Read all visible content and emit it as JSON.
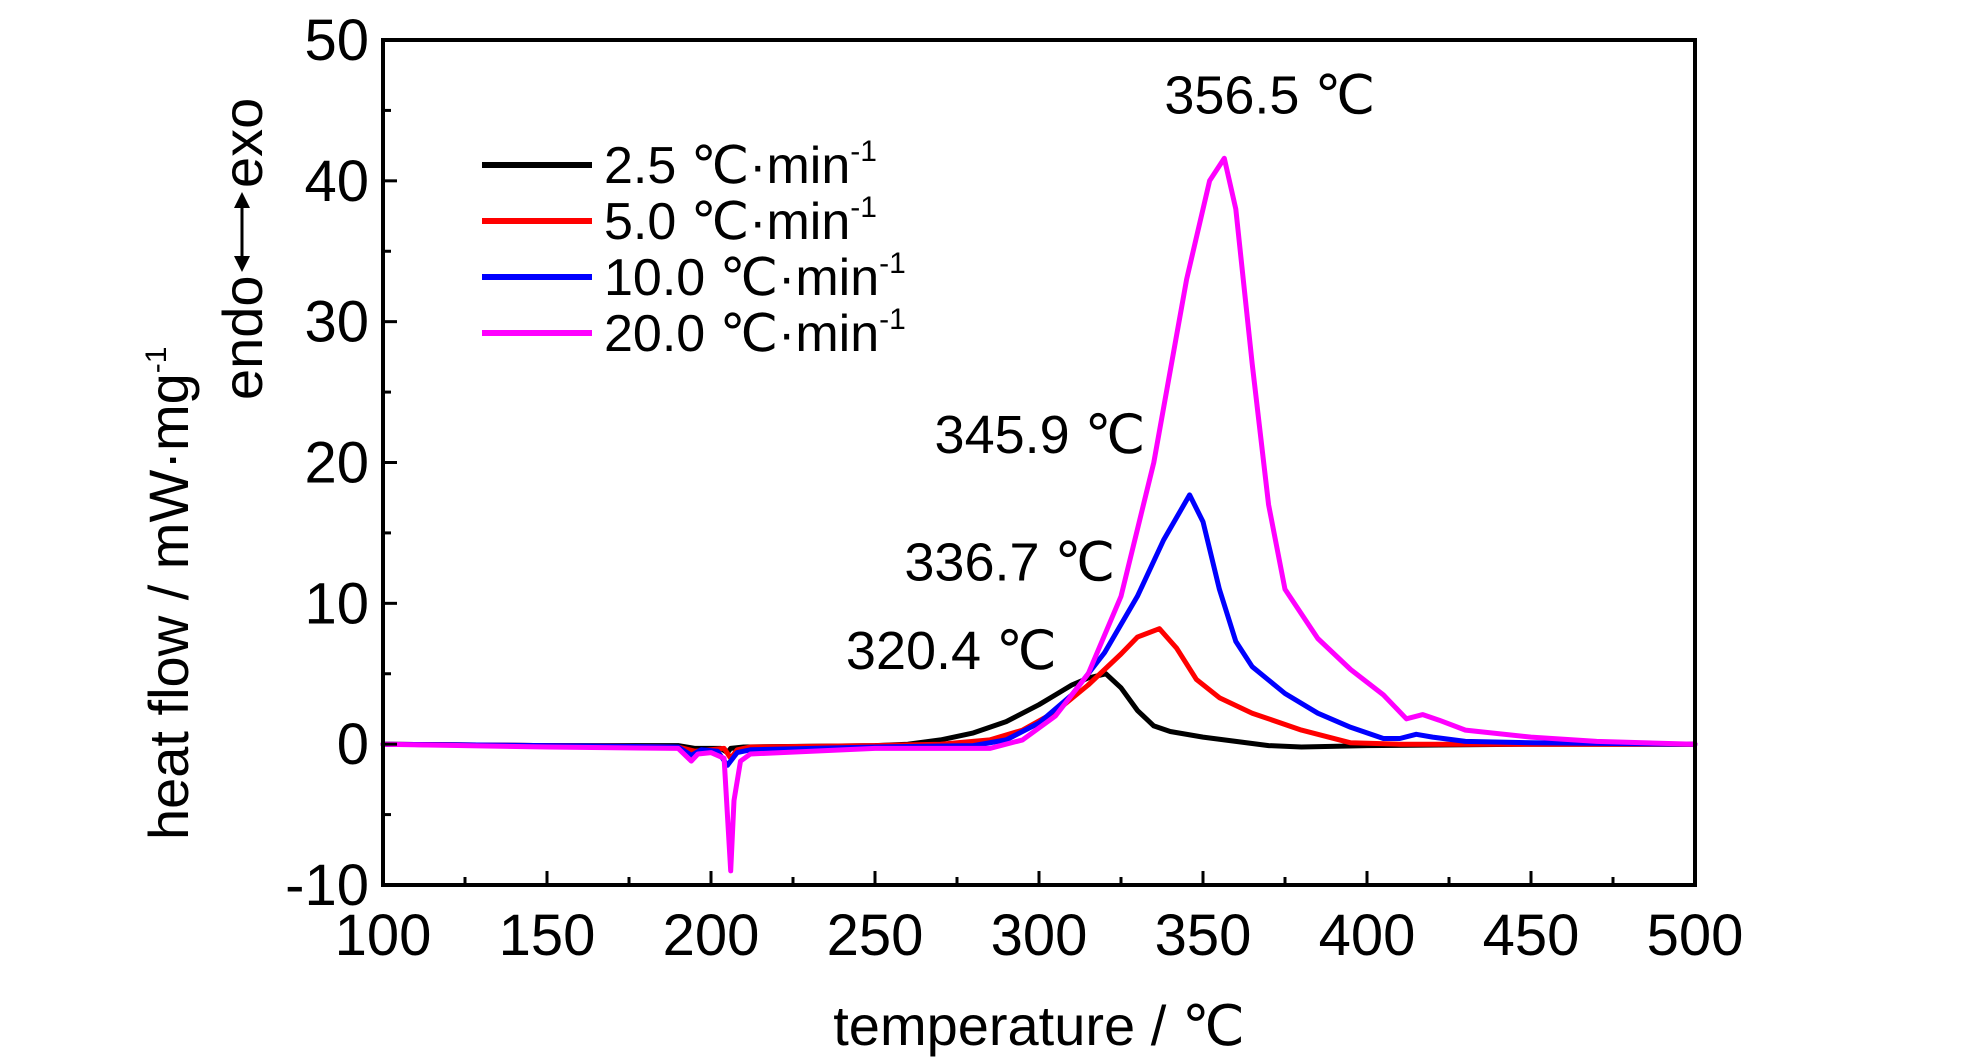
{
  "chart_data": {
    "type": "line",
    "xlabel": "temperature / ℃",
    "ylabel": "heat flow / mW·mg",
    "ylabel_sup": "-1",
    "direction_label": {
      "left": "endo",
      "right": "exo"
    },
    "xlim": [
      100,
      500
    ],
    "ylim": [
      -10,
      50
    ],
    "x_ticks": [
      100,
      150,
      200,
      250,
      300,
      350,
      400,
      450,
      500
    ],
    "y_ticks": [
      -10,
      0,
      10,
      20,
      30,
      40,
      50
    ],
    "x_tick_labels": [
      "100",
      "150",
      "200",
      "250",
      "300",
      "350",
      "400",
      "450",
      "500"
    ],
    "y_tick_labels": [
      "-10",
      "0",
      "10",
      "20",
      "30",
      "40",
      "50"
    ],
    "grid": false,
    "legend_position": "top-left",
    "series": [
      {
        "name": "2.5 ℃·min",
        "name_sup": "-1",
        "color": "#000000",
        "points": [
          [
            100,
            0
          ],
          [
            150,
            -0.1
          ],
          [
            190,
            -0.1
          ],
          [
            195,
            -0.3
          ],
          [
            200,
            -0.3
          ],
          [
            203,
            -0.3
          ],
          [
            205,
            -0.6
          ],
          [
            206,
            -0.3
          ],
          [
            210,
            -0.2
          ],
          [
            250,
            -0.1
          ],
          [
            260,
            0
          ],
          [
            270,
            0.3
          ],
          [
            280,
            0.8
          ],
          [
            290,
            1.6
          ],
          [
            300,
            2.8
          ],
          [
            305,
            3.5
          ],
          [
            310,
            4.2
          ],
          [
            315,
            4.7
          ],
          [
            320.4,
            5.0
          ],
          [
            325,
            4.0
          ],
          [
            330,
            2.4
          ],
          [
            335,
            1.3
          ],
          [
            340,
            0.9
          ],
          [
            350,
            0.5
          ],
          [
            360,
            0.2
          ],
          [
            370,
            -0.1
          ],
          [
            380,
            -0.2
          ],
          [
            400,
            -0.1
          ],
          [
            450,
            0
          ],
          [
            500,
            0
          ]
        ]
      },
      {
        "name": "5.0 ℃·min",
        "name_sup": "-1",
        "color": "#ff0000",
        "points": [
          [
            100,
            0
          ],
          [
            150,
            -0.1
          ],
          [
            190,
            -0.2
          ],
          [
            195,
            -0.5
          ],
          [
            200,
            -0.4
          ],
          [
            204,
            -0.3
          ],
          [
            206,
            -1.0
          ],
          [
            208,
            -0.4
          ],
          [
            212,
            -0.2
          ],
          [
            250,
            -0.1
          ],
          [
            270,
            0
          ],
          [
            285,
            0.3
          ],
          [
            295,
            1.0
          ],
          [
            305,
            2.3
          ],
          [
            315,
            4.2
          ],
          [
            325,
            6.4
          ],
          [
            330,
            7.6
          ],
          [
            336.7,
            8.2
          ],
          [
            342,
            6.8
          ],
          [
            348,
            4.6
          ],
          [
            355,
            3.3
          ],
          [
            365,
            2.2
          ],
          [
            380,
            1.0
          ],
          [
            395,
            0.1
          ],
          [
            410,
            0
          ],
          [
            450,
            0
          ],
          [
            500,
            0
          ]
        ]
      },
      {
        "name": "10.0 ℃·min",
        "name_sup": "-1",
        "color": "#0000ff",
        "points": [
          [
            100,
            0
          ],
          [
            150,
            -0.1
          ],
          [
            190,
            -0.2
          ],
          [
            194,
            -0.8
          ],
          [
            197,
            -0.4
          ],
          [
            202,
            -0.5
          ],
          [
            205,
            -1.5
          ],
          [
            208,
            -0.6
          ],
          [
            212,
            -0.4
          ],
          [
            250,
            -0.2
          ],
          [
            280,
            -0.1
          ],
          [
            290,
            0.3
          ],
          [
            300,
            1.5
          ],
          [
            310,
            3.5
          ],
          [
            320,
            6.5
          ],
          [
            330,
            10.5
          ],
          [
            338,
            14.5
          ],
          [
            345.9,
            17.7
          ],
          [
            350,
            15.8
          ],
          [
            355,
            11.0
          ],
          [
            360,
            7.3
          ],
          [
            365,
            5.5
          ],
          [
            375,
            3.6
          ],
          [
            385,
            2.2
          ],
          [
            395,
            1.2
          ],
          [
            405,
            0.4
          ],
          [
            410,
            0.4
          ],
          [
            415,
            0.7
          ],
          [
            420,
            0.5
          ],
          [
            430,
            0.2
          ],
          [
            450,
            0.1
          ],
          [
            500,
            0
          ]
        ]
      },
      {
        "name": "20.0 ℃·min",
        "name_sup": "-1",
        "color": "#ff00ff",
        "points": [
          [
            100,
            0
          ],
          [
            150,
            -0.2
          ],
          [
            190,
            -0.3
          ],
          [
            194,
            -1.2
          ],
          [
            196,
            -0.7
          ],
          [
            200,
            -0.6
          ],
          [
            204,
            -1.0
          ],
          [
            206,
            -9.0
          ],
          [
            207,
            -4.0
          ],
          [
            209,
            -1.2
          ],
          [
            212,
            -0.7
          ],
          [
            250,
            -0.3
          ],
          [
            285,
            -0.3
          ],
          [
            295,
            0.3
          ],
          [
            305,
            2.0
          ],
          [
            315,
            5.0
          ],
          [
            325,
            10.5
          ],
          [
            335,
            20.0
          ],
          [
            345,
            33.0
          ],
          [
            352,
            40.0
          ],
          [
            356.5,
            41.6
          ],
          [
            360,
            38.0
          ],
          [
            365,
            27.0
          ],
          [
            370,
            17.0
          ],
          [
            375,
            11.0
          ],
          [
            385,
            7.5
          ],
          [
            395,
            5.3
          ],
          [
            405,
            3.5
          ],
          [
            412,
            1.8
          ],
          [
            417,
            2.1
          ],
          [
            422,
            1.7
          ],
          [
            430,
            1.0
          ],
          [
            450,
            0.5
          ],
          [
            470,
            0.2
          ],
          [
            500,
            0
          ]
        ]
      }
    ],
    "annotations": [
      {
        "text": "356.5 ℃",
        "x": 356.5,
        "y": 41.6
      },
      {
        "text": "345.9 ℃",
        "x": 345.9,
        "y": 17.7
      },
      {
        "text": "336.7 ℃",
        "x": 336.7,
        "y": 8.2
      },
      {
        "text": "320.4 ℃",
        "x": 320.4,
        "y": 5.0
      }
    ]
  }
}
